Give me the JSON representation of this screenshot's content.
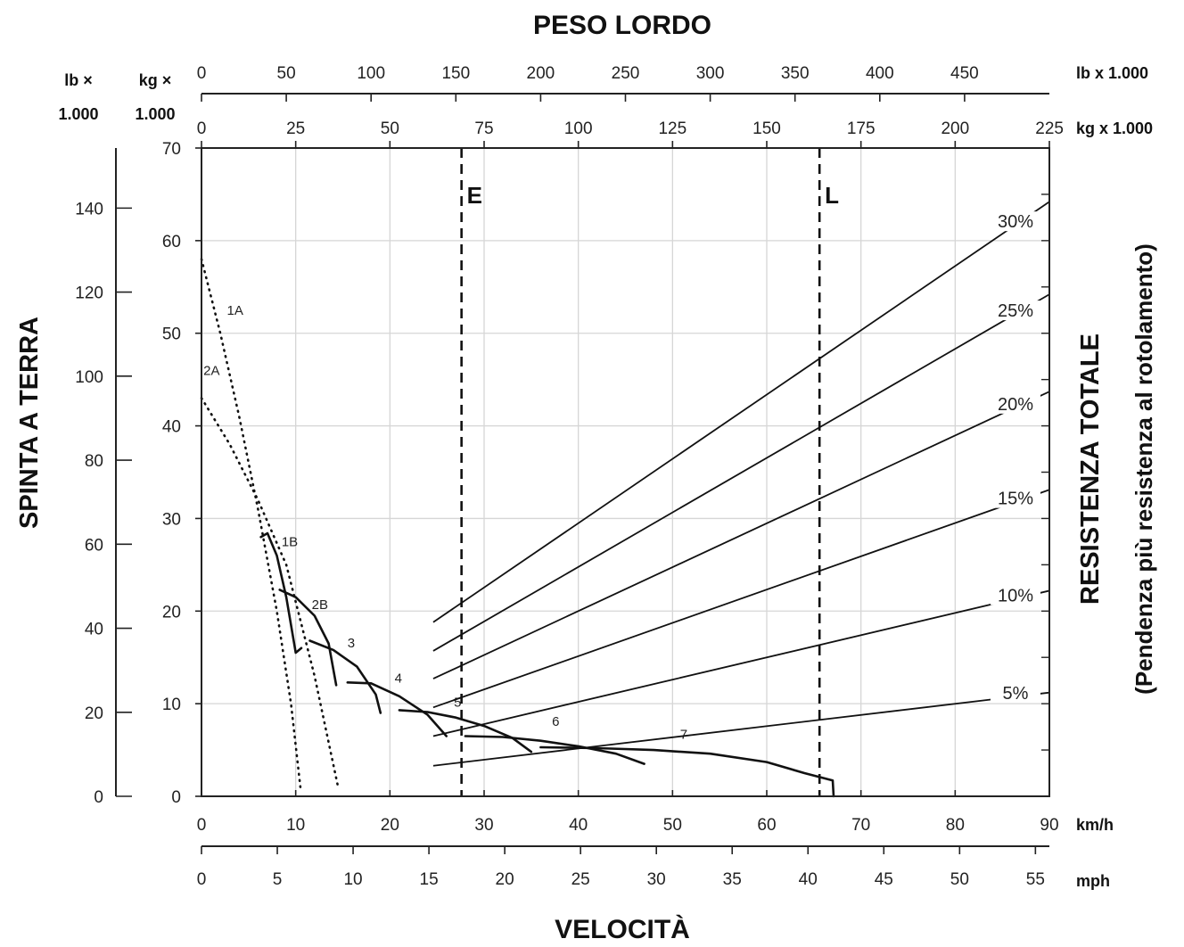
{
  "chart_data": {
    "type": "line",
    "title": "PESO LORDO",
    "xlabel": "VELOCITÀ",
    "ylabel_left": "SPINTA A TERRA",
    "ylabel_right_line1": "RESISTENZA TOTALE",
    "ylabel_right_line2": "(Pendenza più resistenza al rotolamento)",
    "grid": true,
    "axes": {
      "top_lb": {
        "header": [
          "lb ×",
          "1.000"
        ],
        "unit": "lb x 1.000",
        "range": [
          0,
          500
        ],
        "ticks": [
          0,
          50,
          100,
          150,
          200,
          250,
          300,
          350,
          400,
          450
        ]
      },
      "top_kg": {
        "header": [
          "kg ×",
          "1.000"
        ],
        "unit": "kg x 1.000",
        "range": [
          0,
          225
        ],
        "ticks": [
          0,
          25,
          50,
          75,
          100,
          125,
          150,
          175,
          200,
          225
        ]
      },
      "x_kmh": {
        "unit": "km/h",
        "range": [
          0,
          90
        ],
        "ticks": [
          0,
          10,
          20,
          30,
          40,
          50,
          60,
          70,
          80,
          90
        ]
      },
      "x_mph": {
        "unit": "mph",
        "range": [
          0,
          55.92
        ],
        "ticks": [
          0,
          5,
          10,
          15,
          20,
          25,
          30,
          35,
          40,
          45,
          50,
          55
        ]
      },
      "y_kg": {
        "range": [
          0,
          70
        ],
        "ticks": [
          0,
          10,
          20,
          30,
          40,
          50,
          60,
          70
        ]
      },
      "y_lb": {
        "range": [
          0,
          154.3
        ],
        "ticks": [
          0,
          20,
          40,
          60,
          80,
          100,
          120,
          140
        ]
      }
    },
    "limits": [
      {
        "label": "E",
        "weight_kg_x1000": 69
      },
      {
        "label": "L",
        "weight_kg_x1000": 164
      }
    ],
    "gear_series": [
      {
        "name": "1A",
        "style": "dotted",
        "x_kmh": [
          0,
          2,
          4,
          6,
          8,
          9.5,
          10.5
        ],
        "y_kg_x1000": [
          58,
          50,
          41,
          31,
          20,
          10,
          1
        ]
      },
      {
        "name": "2A",
        "style": "dotted",
        "x_kmh": [
          0,
          3,
          6,
          9,
          12,
          14.5
        ],
        "y_kg_x1000": [
          43,
          38,
          32,
          25,
          13,
          1
        ]
      },
      {
        "name": "1B",
        "style": "solid",
        "x_kmh": [
          6.3,
          7,
          8,
          9,
          10,
          10.6
        ],
        "y_kg_x1000": [
          28,
          28.4,
          26,
          21.5,
          15.5,
          16
        ]
      },
      {
        "name": "2B",
        "style": "solid",
        "x_kmh": [
          8.3,
          10,
          12,
          13.5,
          14.3
        ],
        "y_kg_x1000": [
          22.3,
          21.5,
          19.5,
          16.5,
          12
        ]
      },
      {
        "name": "3",
        "style": "solid",
        "x_kmh": [
          11.5,
          14,
          16.5,
          18.5,
          19
        ],
        "y_kg_x1000": [
          16.8,
          15.8,
          14,
          11,
          9
        ]
      },
      {
        "name": "4",
        "style": "solid",
        "x_kmh": [
          15.5,
          18,
          21,
          24,
          26
        ],
        "y_kg_x1000": [
          12.3,
          12.2,
          10.8,
          8.8,
          6.5
        ]
      },
      {
        "name": "5",
        "style": "solid",
        "x_kmh": [
          21,
          24,
          27,
          30,
          33,
          35
        ],
        "y_kg_x1000": [
          9.3,
          9.1,
          8.5,
          7.6,
          6.3,
          4.8
        ]
      },
      {
        "name": "6",
        "style": "solid",
        "x_kmh": [
          28,
          32,
          36,
          40,
          44,
          47
        ],
        "y_kg_x1000": [
          6.5,
          6.4,
          6,
          5.4,
          4.6,
          3.5
        ]
      },
      {
        "name": "7",
        "style": "solid",
        "x_kmh": [
          36,
          42,
          48,
          54,
          60,
          64,
          67,
          67.1
        ],
        "y_kg_x1000": [
          5.3,
          5.2,
          5,
          4.6,
          3.7,
          2.5,
          1.7,
          0
        ]
      }
    ],
    "series_labels": [
      {
        "name": "1A",
        "x_kmh": 2.7,
        "y_kg_x1000": 52
      },
      {
        "name": "2A",
        "x_kmh": 0.2,
        "y_kg_x1000": 45.5
      },
      {
        "name": "1B",
        "x_kmh": 8.5,
        "y_kg_x1000": 27
      },
      {
        "name": "2B",
        "x_kmh": 11.7,
        "y_kg_x1000": 20.2
      },
      {
        "name": "3",
        "x_kmh": 15.5,
        "y_kg_x1000": 16.1
      },
      {
        "name": "4",
        "x_kmh": 20.5,
        "y_kg_x1000": 12.3
      },
      {
        "name": "5",
        "x_kmh": 26.8,
        "y_kg_x1000": 9.7
      },
      {
        "name": "6",
        "x_kmh": 37.2,
        "y_kg_x1000": 7.6
      },
      {
        "name": "7",
        "x_kmh": 50.8,
        "y_kg_x1000": 6.2
      }
    ],
    "resistance_lines": [
      {
        "name": "30%",
        "start_kg_x1000": 61.5,
        "end_kg_x1000": 225,
        "y_start": 18.8,
        "y_end": 64.2
      },
      {
        "name": "25%",
        "start_kg_x1000": 61.5,
        "end_kg_x1000": 225,
        "y_start": 15.7,
        "y_end": 54.2
      },
      {
        "name": "20%",
        "start_kg_x1000": 61.5,
        "end_kg_x1000": 225,
        "y_start": 12.7,
        "y_end": 43.7
      },
      {
        "name": "15%",
        "start_kg_x1000": 61.5,
        "end_kg_x1000": 225,
        "y_start": 9.6,
        "y_end": 33.1
      },
      {
        "name": "10%",
        "start_kg_x1000": 61.5,
        "end_kg_x1000": 225,
        "y_start": 6.5,
        "y_end": 22.2
      },
      {
        "name": "5%",
        "start_kg_x1000": 61.5,
        "end_kg_x1000": 225,
        "y_start": 3.3,
        "y_end": 11.2
      }
    ]
  }
}
